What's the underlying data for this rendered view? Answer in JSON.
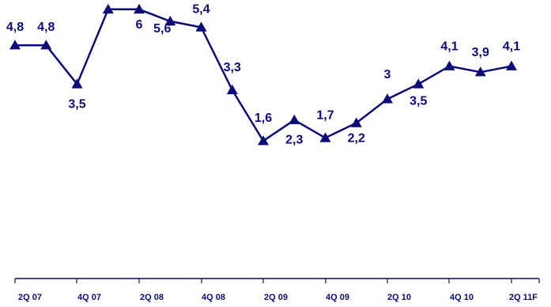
{
  "chart_data": {
    "type": "line",
    "title": "",
    "xlabel": "",
    "ylabel": "",
    "ylim": [
      -3,
      7
    ],
    "grid": false,
    "legend": "none",
    "color": "#0b0b7a",
    "marker": "triangle",
    "x": [
      "2Q 07",
      "3Q 07",
      "4Q 07",
      "1Q 08",
      "2Q 08",
      "3Q 08",
      "4Q 08",
      "1Q 09",
      "2Q 09",
      "3Q 09",
      "4Q 09",
      "1Q 10",
      "2Q 10",
      "3Q 10",
      "4Q 10",
      "1Q 11F",
      "2Q 11F"
    ],
    "tick_labels": [
      "2Q 07",
      "4Q 07",
      "2Q 08",
      "4Q 08",
      "2Q 09",
      "4Q 09",
      "2Q 10",
      "4Q 10",
      "2Q 11F"
    ],
    "series": [
      {
        "values": [
          4.8,
          4.8,
          3.5,
          6,
          6,
          5.6,
          5.4,
          3.3,
          1.6,
          2.3,
          1.7,
          2.2,
          3,
          3.5,
          4.1,
          3.9,
          4.1
        ]
      }
    ],
    "data_labels": [
      "4,8",
      "4,8",
      "3,5",
      "6",
      "6",
      "5,6",
      "5,4",
      "3,3",
      "1,6",
      "2,3",
      "1,7",
      "2,2",
      "3",
      "3,5",
      "4,1",
      "3,9",
      "4,1"
    ]
  }
}
